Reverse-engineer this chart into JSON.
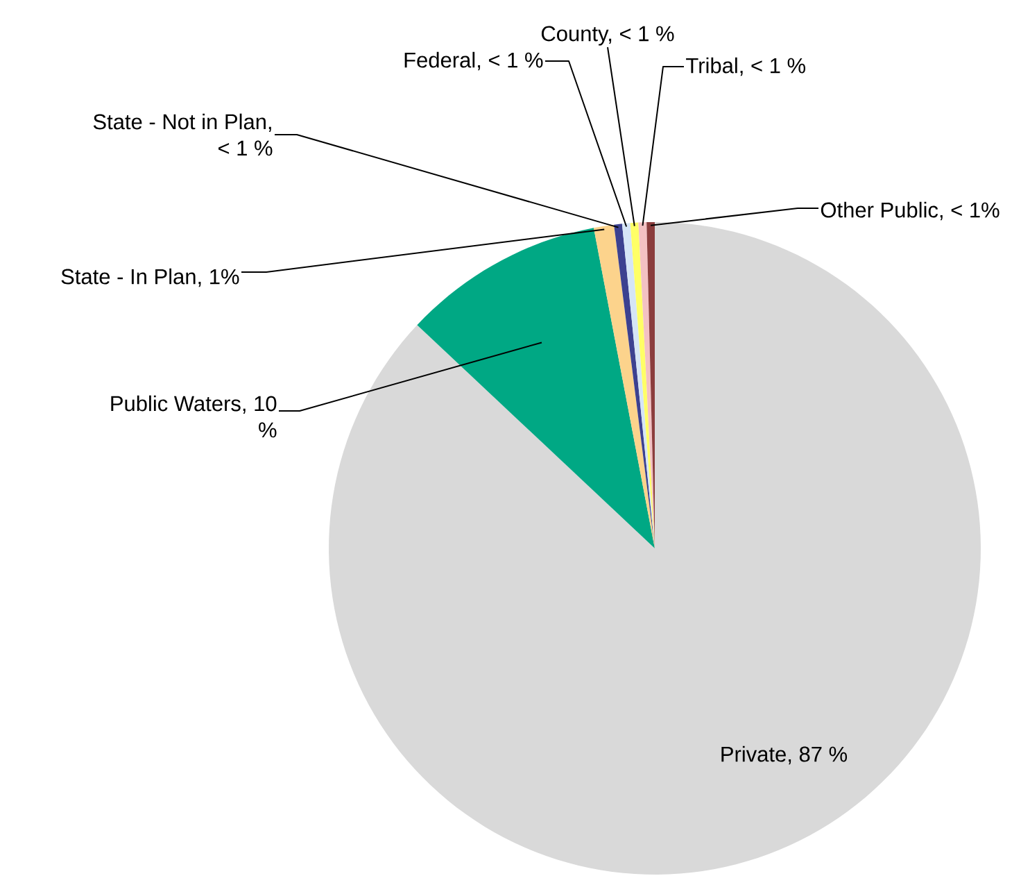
{
  "chart_data": {
    "type": "pie",
    "categories": [
      "Private, 87 %",
      "Public Waters, 10 %",
      "State - In Plan, 1%",
      "State - Not in Plan, < 1 %",
      "Federal, < 1 %",
      "County, < 1 %",
      "Tribal, < 1 %",
      "Other Public, < 1%"
    ],
    "values": [
      87,
      10,
      1,
      0.4,
      0.4,
      0.4,
      0.4,
      0.4
    ],
    "colors": [
      "#d9d9d9",
      "#00a884",
      "#fcd38c",
      "#3c4190",
      "#d5e5f6",
      "#ffff66",
      "#f3c1c3",
      "#8b3d3d"
    ]
  }
}
